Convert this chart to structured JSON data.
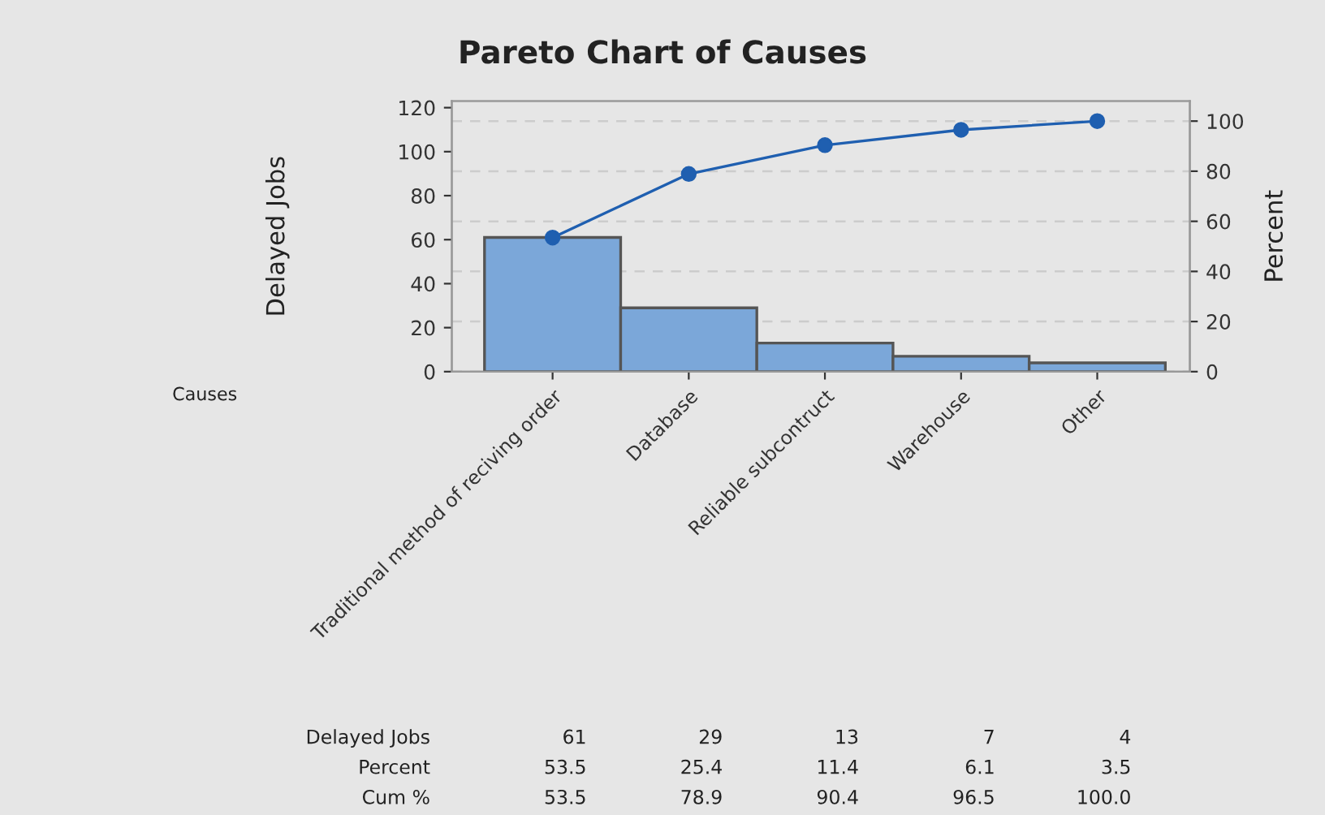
{
  "chart_data": {
    "type": "bar",
    "title": "Pareto Chart of Causes",
    "xlabel": "Causes",
    "ylabel": "Delayed Jobs",
    "y2label": "Percent",
    "categories": [
      "Traditional method of reciving order",
      "Database",
      "Reliable subcontruct",
      "Warehouse",
      "Other"
    ],
    "series": [
      {
        "color": "#7ba7d9",
        "values": [
          61,
          29,
          13,
          7,
          4
        ],
        "value_labels": [
          "61",
          "29",
          "13",
          "7",
          "4"
        ]
      },
      {
        "type": "line",
        "axis": "y2",
        "color": "#1f5fb0",
        "values": [
          53.5,
          78.9,
          90.4,
          96.5,
          100.0
        ],
        "value_labels": [
          "53.5",
          "78.9",
          "90.4",
          "96.5",
          "100.0"
        ]
      }
    ],
    "annotations": [
      "Delayed Jobs",
      "Percent",
      "Cum %",
      "53.5",
      "25.4",
      "11.4",
      "6.1",
      "3.5"
    ],
    "ylim": [
      0,
      123
    ],
    "yticks": [
      0,
      20,
      40,
      60,
      80,
      100,
      120
    ],
    "y2lim": [
      0,
      108
    ],
    "y2ticks": [
      0,
      20,
      40,
      60,
      80,
      100
    ],
    "grid": "y2",
    "marker": "circle",
    "line_style": "solid",
    "legend": false
  }
}
